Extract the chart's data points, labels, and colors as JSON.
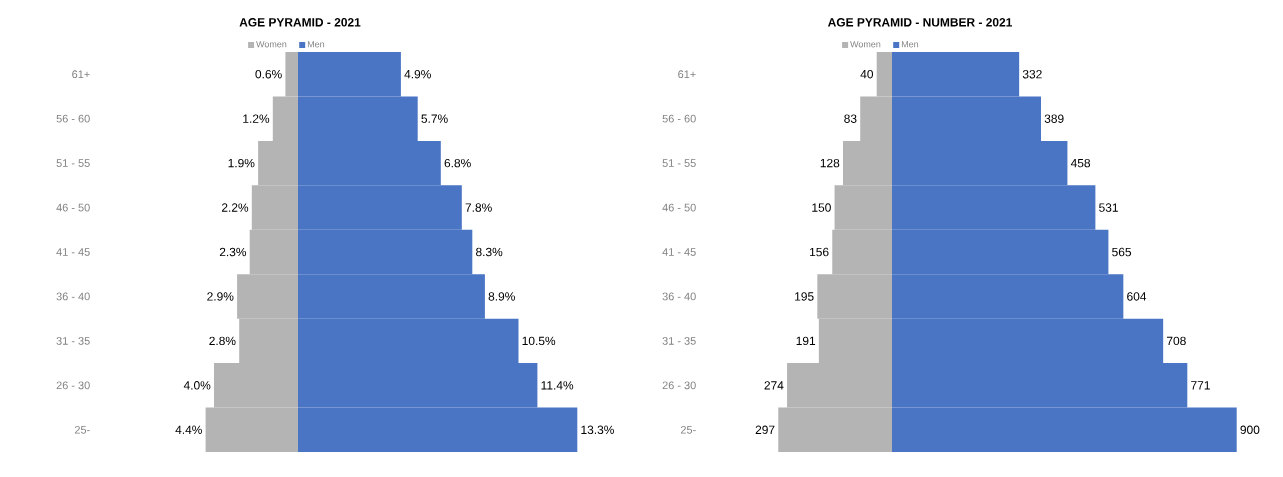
{
  "chart_data": [
    {
      "type": "bar",
      "orientation": "horizontal",
      "title": "AGE PYRAMID - 2021",
      "categories": [
        "61+",
        "56 - 60",
        "51 - 55",
        "46 - 50",
        "41 - 45",
        "36 - 40",
        "31 - 35",
        "26 - 30",
        "25-"
      ],
      "tick_labels": "y",
      "legend": "top",
      "series": [
        {
          "name": "Women",
          "color": "#b4b4b4",
          "values": [
            0.6,
            1.2,
            1.9,
            2.2,
            2.3,
            2.9,
            2.8,
            4.0,
            4.4
          ],
          "value_labels": [
            "0.6%",
            "1.2%",
            "1.9%",
            "2.2%",
            "2.3%",
            "2.9%",
            "2.8%",
            "4.0%",
            "4.4%"
          ]
        }
      ]
    },
    {
      "type": "bar",
      "orientation": "horizontal",
      "categories": [
        null,
        null,
        null,
        null,
        null,
        null,
        null,
        null,
        null
      ],
      "tick_labels": false,
      "legend": "top",
      "series": [
        {
          "name": "Men",
          "color": "#4a74c4",
          "values": [
            4.9,
            5.7,
            6.8,
            7.8,
            8.3,
            8.9,
            10.5,
            11.4,
            13.3
          ],
          "value_labels": [
            "4.9%",
            "5.7%",
            "6.8%",
            "7.8%",
            "8.3%",
            "8.9%",
            "10.5%",
            "11.4%",
            "13.3%"
          ]
        }
      ]
    },
    {
      "type": "bar",
      "orientation": "horizontal",
      "title": "AGE PYRAMID - NUMBER - 2021",
      "categories": [
        "61+",
        "56 - 60",
        "51 - 55",
        "46 - 50",
        "41 - 45",
        "36 - 40",
        "31 - 35",
        "26 - 30",
        "25-"
      ],
      "tick_labels": "y",
      "legend": "top",
      "series": [
        {
          "name": "Women",
          "color": "#b4b4b4",
          "values": [
            40,
            83,
            128,
            150,
            156,
            195,
            191,
            274,
            297
          ],
          "data_labels": true
        }
      ]
    },
    {
      "type": "bar",
      "orientation": "horizontal",
      "categories": [
        null,
        null,
        null,
        null,
        null,
        null,
        null,
        null,
        null
      ],
      "tick_labels": false,
      "legend": "top",
      "series": [
        {
          "name": "Men",
          "color": "#4a74c4",
          "values": [
            332,
            389,
            458,
            531,
            565,
            604,
            708,
            771,
            900
          ],
          "data_labels": true
        }
      ]
    }
  ]
}
